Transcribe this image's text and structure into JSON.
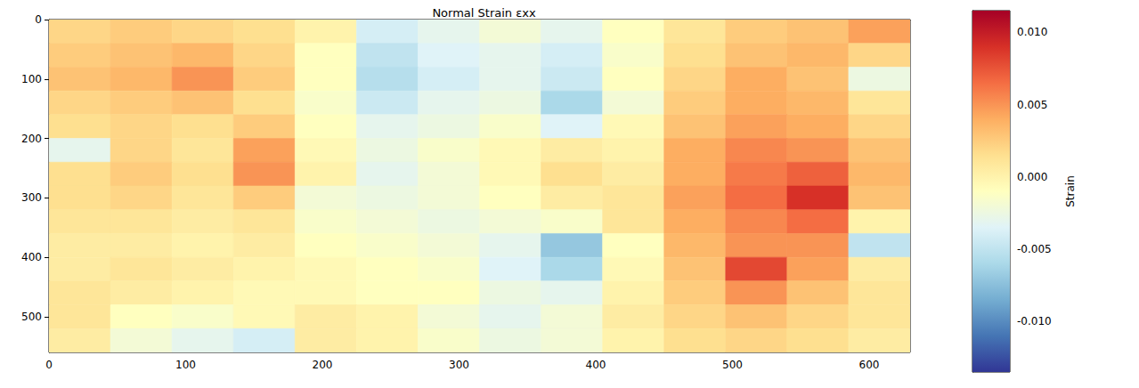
{
  "chart_data": {
    "type": "heatmap",
    "title": "Normal Strain εxx",
    "xlim": [
      0,
      630
    ],
    "ylim": [
      560,
      0
    ],
    "xticks": [
      0,
      100,
      200,
      300,
      400,
      500,
      600
    ],
    "yticks": [
      0,
      100,
      200,
      300,
      400,
      500
    ],
    "x_edges": [
      0,
      45,
      90,
      135,
      180,
      225,
      270,
      315,
      360,
      405,
      450,
      495,
      540,
      585,
      630
    ],
    "y_edges": [
      0,
      40,
      80,
      120,
      160,
      200,
      240,
      280,
      320,
      360,
      400,
      440,
      480,
      520,
      560
    ],
    "cells": [
      [
        0.002,
        0.0025,
        0.002,
        0.0015,
        0,
        -0.004,
        -0.003,
        -0.002,
        -0.003,
        -0.001,
        0.001,
        0.0025,
        0.003,
        0.0045
      ],
      [
        0.0025,
        0.003,
        0.0035,
        0.002,
        -0.001,
        -0.005,
        -0.0035,
        -0.003,
        -0.004,
        -0.0015,
        0.0015,
        0.003,
        0.0035,
        0.002
      ],
      [
        0.003,
        0.0035,
        0.005,
        0.0025,
        -0.001,
        -0.0055,
        -0.004,
        -0.003,
        -0.0045,
        -0.001,
        0.002,
        0.004,
        0.003,
        -0.0025
      ],
      [
        0.002,
        0.0025,
        0.003,
        0.0015,
        -0.0015,
        -0.0045,
        -0.003,
        -0.0025,
        -0.006,
        -0.002,
        0.0025,
        0.004,
        0.0035,
        0.001
      ],
      [
        0.0015,
        0.002,
        0.0015,
        0.0025,
        -0.001,
        -0.003,
        -0.0025,
        -0.0015,
        -0.0035,
        -0.0005,
        0.003,
        0.0045,
        0.004,
        0.002
      ],
      [
        -0.003,
        0.002,
        0.001,
        0.0045,
        -0.0005,
        -0.0025,
        -0.0015,
        -0.0005,
        0.0005,
        0,
        0.004,
        0.0055,
        0.005,
        0.003
      ],
      [
        0.0015,
        0.0025,
        0.0015,
        0.005,
        0,
        -0.003,
        -0.002,
        -0.0005,
        0.0015,
        0.0005,
        0.004,
        0.006,
        0.007,
        0.0035
      ],
      [
        0.0015,
        0.002,
        0.001,
        0.0025,
        -0.002,
        -0.0025,
        -0.002,
        -0.001,
        0.0005,
        0.001,
        0.0045,
        0.0065,
        0.009,
        0.003
      ],
      [
        0.001,
        0.001,
        0.0005,
        0.001,
        -0.0015,
        -0.002,
        -0.0025,
        -0.002,
        -0.0015,
        0.001,
        0.004,
        0.0055,
        0.0065,
        0
      ],
      [
        0.0005,
        0.0005,
        0,
        0.0005,
        -0.001,
        -0.0015,
        -0.002,
        -0.003,
        -0.007,
        -0.001,
        0.0035,
        0.005,
        0.005,
        -0.005
      ],
      [
        0.0005,
        0.001,
        0.0005,
        0,
        -0.0005,
        -0.001,
        -0.0015,
        -0.0035,
        -0.006,
        -0.0005,
        0.003,
        0.008,
        0.0045,
        0.0005
      ],
      [
        0.001,
        0.0005,
        0,
        -0.0005,
        -0.0005,
        -0.001,
        -0.001,
        -0.0025,
        -0.003,
        0,
        0.0025,
        0.005,
        0.003,
        0.001
      ],
      [
        0.001,
        -0.001,
        -0.0015,
        -0.0005,
        0.0005,
        0,
        -0.002,
        -0.003,
        -0.002,
        0.0005,
        0.002,
        0.003,
        0.002,
        0.001
      ],
      [
        0.0005,
        -0.002,
        -0.003,
        -0.004,
        0.0005,
        0,
        -0.0015,
        -0.0025,
        -0.002,
        0,
        0.0015,
        0.002,
        0.0015,
        0.0005
      ]
    ],
    "colorbar": {
      "label": "Strain",
      "range": [
        -0.0135,
        0.0115
      ],
      "ticks": [
        {
          "value": -0.01,
          "label": "-0.010"
        },
        {
          "value": -0.005,
          "label": "-0.005"
        },
        {
          "value": 0,
          "label": "0.000"
        },
        {
          "value": 0.005,
          "label": "0.005"
        },
        {
          "value": 0.01,
          "label": "0.010"
        }
      ]
    }
  }
}
